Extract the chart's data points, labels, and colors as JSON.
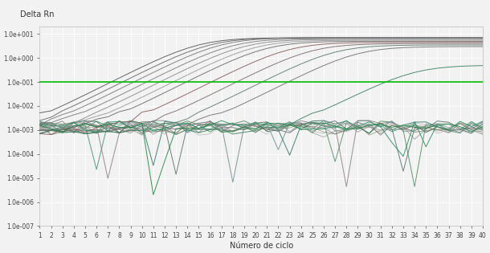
{
  "ylabel": "Delta Rn",
  "xlabel": "Número de ciclo",
  "threshold_y": 0.1,
  "threshold_color": "#00bb00",
  "background_color": "#f2f2f2",
  "grid_color": "#ffffff",
  "ytick_labels": [
    "1.0e-007",
    "1.0e-006",
    "1.0e-005",
    "1.0e-004",
    "1.0e-003",
    "1.0e-002",
    "1.0e-001",
    "1.0e+000",
    "1.0e+001"
  ],
  "ytick_values": [
    1e-07,
    1e-06,
    1e-05,
    0.0001,
    0.001,
    0.01,
    0.1,
    1.0,
    10.0
  ],
  "xtick_labels": [
    "1",
    "2",
    "3",
    "4",
    "5",
    "6",
    "7",
    "8",
    "9",
    "10",
    "11",
    "12",
    "13",
    "14",
    "15",
    "16",
    "17",
    "18",
    "19",
    "20",
    "21",
    "22",
    "23",
    "24",
    "25",
    "26",
    "27",
    "28",
    "29",
    "30",
    "31",
    "32",
    "33",
    "34",
    "35",
    "36",
    "37",
    "38",
    "39",
    "40"
  ],
  "ylim_bottom": 1e-07,
  "ylim_top": 20.0,
  "xlim_left": 1,
  "xlim_right": 40,
  "amp_ct_values": [
    15,
    16,
    17,
    18,
    19,
    20,
    21,
    23,
    25,
    27,
    29,
    34
  ],
  "amp_top_values": [
    7.0,
    7.0,
    7.0,
    6.5,
    6.0,
    5.5,
    5.0,
    4.5,
    4.0,
    3.5,
    3.0,
    0.5
  ],
  "amp_colors": [
    "#555555",
    "#666666",
    "#777777",
    "#7a7a7a",
    "#888888",
    "#999999",
    "#6a6a6a",
    "#8a5a5a",
    "#7a6a6a",
    "#5a7a6a",
    "#707070",
    "#3a8060"
  ],
  "flat_colors": [
    "#4a8a5a",
    "#2a7060",
    "#3a9070",
    "#5a6a6a",
    "#8a7a7a",
    "#6a8a8a"
  ],
  "extra_colors": [
    "#888888",
    "#777777",
    "#999999",
    "#6a6a6a",
    "#aaaaaa",
    "#7a7a5a"
  ],
  "noise_seed": 12345
}
